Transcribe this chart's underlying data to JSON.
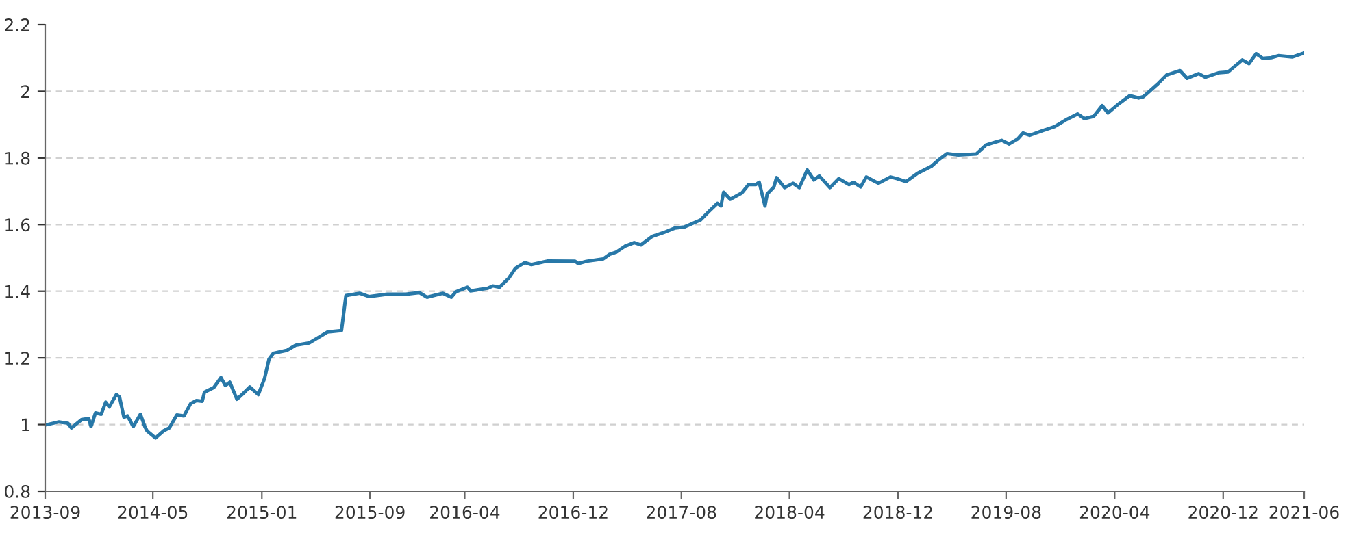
{
  "chart_data": {
    "type": "line",
    "xlim": [
      "2013-09",
      "2021-06"
    ],
    "xticks": [
      "2013-09",
      "2014-05",
      "2015-01",
      "2015-09",
      "2016-04",
      "2016-12",
      "2017-08",
      "2018-04",
      "2018-12",
      "2019-08",
      "2020-04",
      "2020-12",
      "2021-06"
    ],
    "ylim": [
      0.8,
      2.2
    ],
    "yticks": [
      0.8,
      1,
      1.2,
      1.4,
      1.6,
      1.8,
      2,
      2.2
    ],
    "grid": "y",
    "legend": false,
    "marker": "none",
    "line_style": "solid",
    "series": [
      {
        "color": "#2878a8",
        "x": [
          "2013-09-06",
          "2013-10-02",
          "2013-10-22",
          "2013-10-30",
          "2013-11-22",
          "2013-12-08",
          "2013-12-13",
          "2013-12-23",
          "2014-01-05",
          "2014-01-15",
          "2014-01-23",
          "2014-02-08",
          "2014-02-15",
          "2014-02-25",
          "2014-03-05",
          "2014-03-18",
          "2014-04-03",
          "2014-04-13",
          "2014-04-18",
          "2014-05-07",
          "2014-05-25",
          "2014-06-07",
          "2014-06-24",
          "2014-07-10",
          "2014-07-25",
          "2014-08-07",
          "2014-08-20",
          "2014-08-25",
          "2014-09-15",
          "2014-10-01",
          "2014-10-11",
          "2014-10-21",
          "2014-11-06",
          "2014-11-23",
          "2014-12-05",
          "2014-12-24",
          "2015-01-07",
          "2015-01-17",
          "2015-01-27",
          "2015-02-27",
          "2015-03-18",
          "2015-04-18",
          "2015-05-08",
          "2015-05-29",
          "2015-06-29",
          "2015-07-09",
          "2015-08-09",
          "2015-08-30",
          "2015-10-10",
          "2015-11-21",
          "2015-12-21",
          "2016-01-07",
          "2016-02-12",
          "2016-03-02",
          "2016-03-12",
          "2016-04-07",
          "2016-04-14",
          "2016-05-23",
          "2016-06-03",
          "2016-06-18",
          "2016-07-09",
          "2016-07-24",
          "2016-08-14",
          "2016-08-29",
          "2016-10-05",
          "2016-12-05",
          "2016-12-12",
          "2016-12-31",
          "2017-02-06",
          "2017-02-21",
          "2017-03-07",
          "2017-03-27",
          "2017-04-17",
          "2017-05-02",
          "2017-05-28",
          "2017-06-22",
          "2017-07-18",
          "2017-08-08",
          "2017-09-13",
          "2017-10-04",
          "2017-10-21",
          "2017-10-29",
          "2017-11-04",
          "2017-11-19",
          "2017-12-15",
          "2017-12-30",
          "2018-01-15",
          "2018-01-23",
          "2018-02-05",
          "2018-02-10",
          "2018-02-25",
          "2018-03-03",
          "2018-03-21",
          "2018-04-09",
          "2018-04-23",
          "2018-05-11",
          "2018-05-26",
          "2018-06-07",
          "2018-07-01",
          "2018-07-21",
          "2018-08-13",
          "2018-08-23",
          "2018-09-08",
          "2018-09-21",
          "2018-10-18",
          "2018-11-14",
          "2018-11-29",
          "2018-12-19",
          "2019-01-14",
          "2019-02-14",
          "2019-03-01",
          "2019-03-21",
          "2019-04-15",
          "2019-05-26",
          "2019-06-17",
          "2019-07-07",
          "2019-07-22",
          "2019-08-08",
          "2019-08-27",
          "2019-09-08",
          "2019-09-23",
          "2019-10-18",
          "2019-11-18",
          "2019-12-13",
          "2020-01-09",
          "2020-01-24",
          "2020-02-14",
          "2020-03-04",
          "2020-03-17",
          "2020-04-10",
          "2020-05-05",
          "2020-05-25",
          "2020-06-05",
          "2020-07-06",
          "2020-07-27",
          "2020-08-26",
          "2020-09-11",
          "2020-10-07",
          "2020-10-22",
          "2020-11-22",
          "2020-12-12",
          "2021-01-13",
          "2021-01-28",
          "2021-02-13",
          "2021-02-28",
          "2021-03-19",
          "2021-04-04",
          "2021-05-05",
          "2021-05-30"
        ],
        "values": [
          1.0,
          1.008,
          1.004,
          0.99,
          1.015,
          1.018,
          0.994,
          1.035,
          1.031,
          1.067,
          1.053,
          1.09,
          1.083,
          1.022,
          1.026,
          0.994,
          1.031,
          0.994,
          0.981,
          0.96,
          0.981,
          0.99,
          1.029,
          1.026,
          1.063,
          1.072,
          1.07,
          1.097,
          1.111,
          1.141,
          1.117,
          1.127,
          1.076,
          1.097,
          1.113,
          1.09,
          1.138,
          1.196,
          1.214,
          1.223,
          1.238,
          1.245,
          1.261,
          1.278,
          1.282,
          1.387,
          1.394,
          1.384,
          1.391,
          1.391,
          1.396,
          1.382,
          1.394,
          1.382,
          1.398,
          1.412,
          1.401,
          1.409,
          1.416,
          1.412,
          1.439,
          1.469,
          1.486,
          1.48,
          1.491,
          1.49,
          1.483,
          1.49,
          1.497,
          1.511,
          1.517,
          1.535,
          1.546,
          1.539,
          1.565,
          1.576,
          1.59,
          1.593,
          1.614,
          1.642,
          1.664,
          1.656,
          1.697,
          1.676,
          1.695,
          1.72,
          1.72,
          1.727,
          1.656,
          1.692,
          1.713,
          1.741,
          1.711,
          1.724,
          1.711,
          1.764,
          1.734,
          1.746,
          1.711,
          1.738,
          1.72,
          1.727,
          1.713,
          1.743,
          1.724,
          1.743,
          1.738,
          1.729,
          1.754,
          1.775,
          1.793,
          1.813,
          1.809,
          1.812,
          1.839,
          1.847,
          1.853,
          1.842,
          1.857,
          1.875,
          1.868,
          1.88,
          1.894,
          1.914,
          1.932,
          1.918,
          1.925,
          1.957,
          1.935,
          1.962,
          1.987,
          1.98,
          1.984,
          2.021,
          2.049,
          2.062,
          2.039,
          2.053,
          2.042,
          2.056,
          2.058,
          2.094,
          2.083,
          2.113,
          2.099,
          2.101,
          2.107,
          2.103,
          2.114
        ]
      }
    ]
  }
}
